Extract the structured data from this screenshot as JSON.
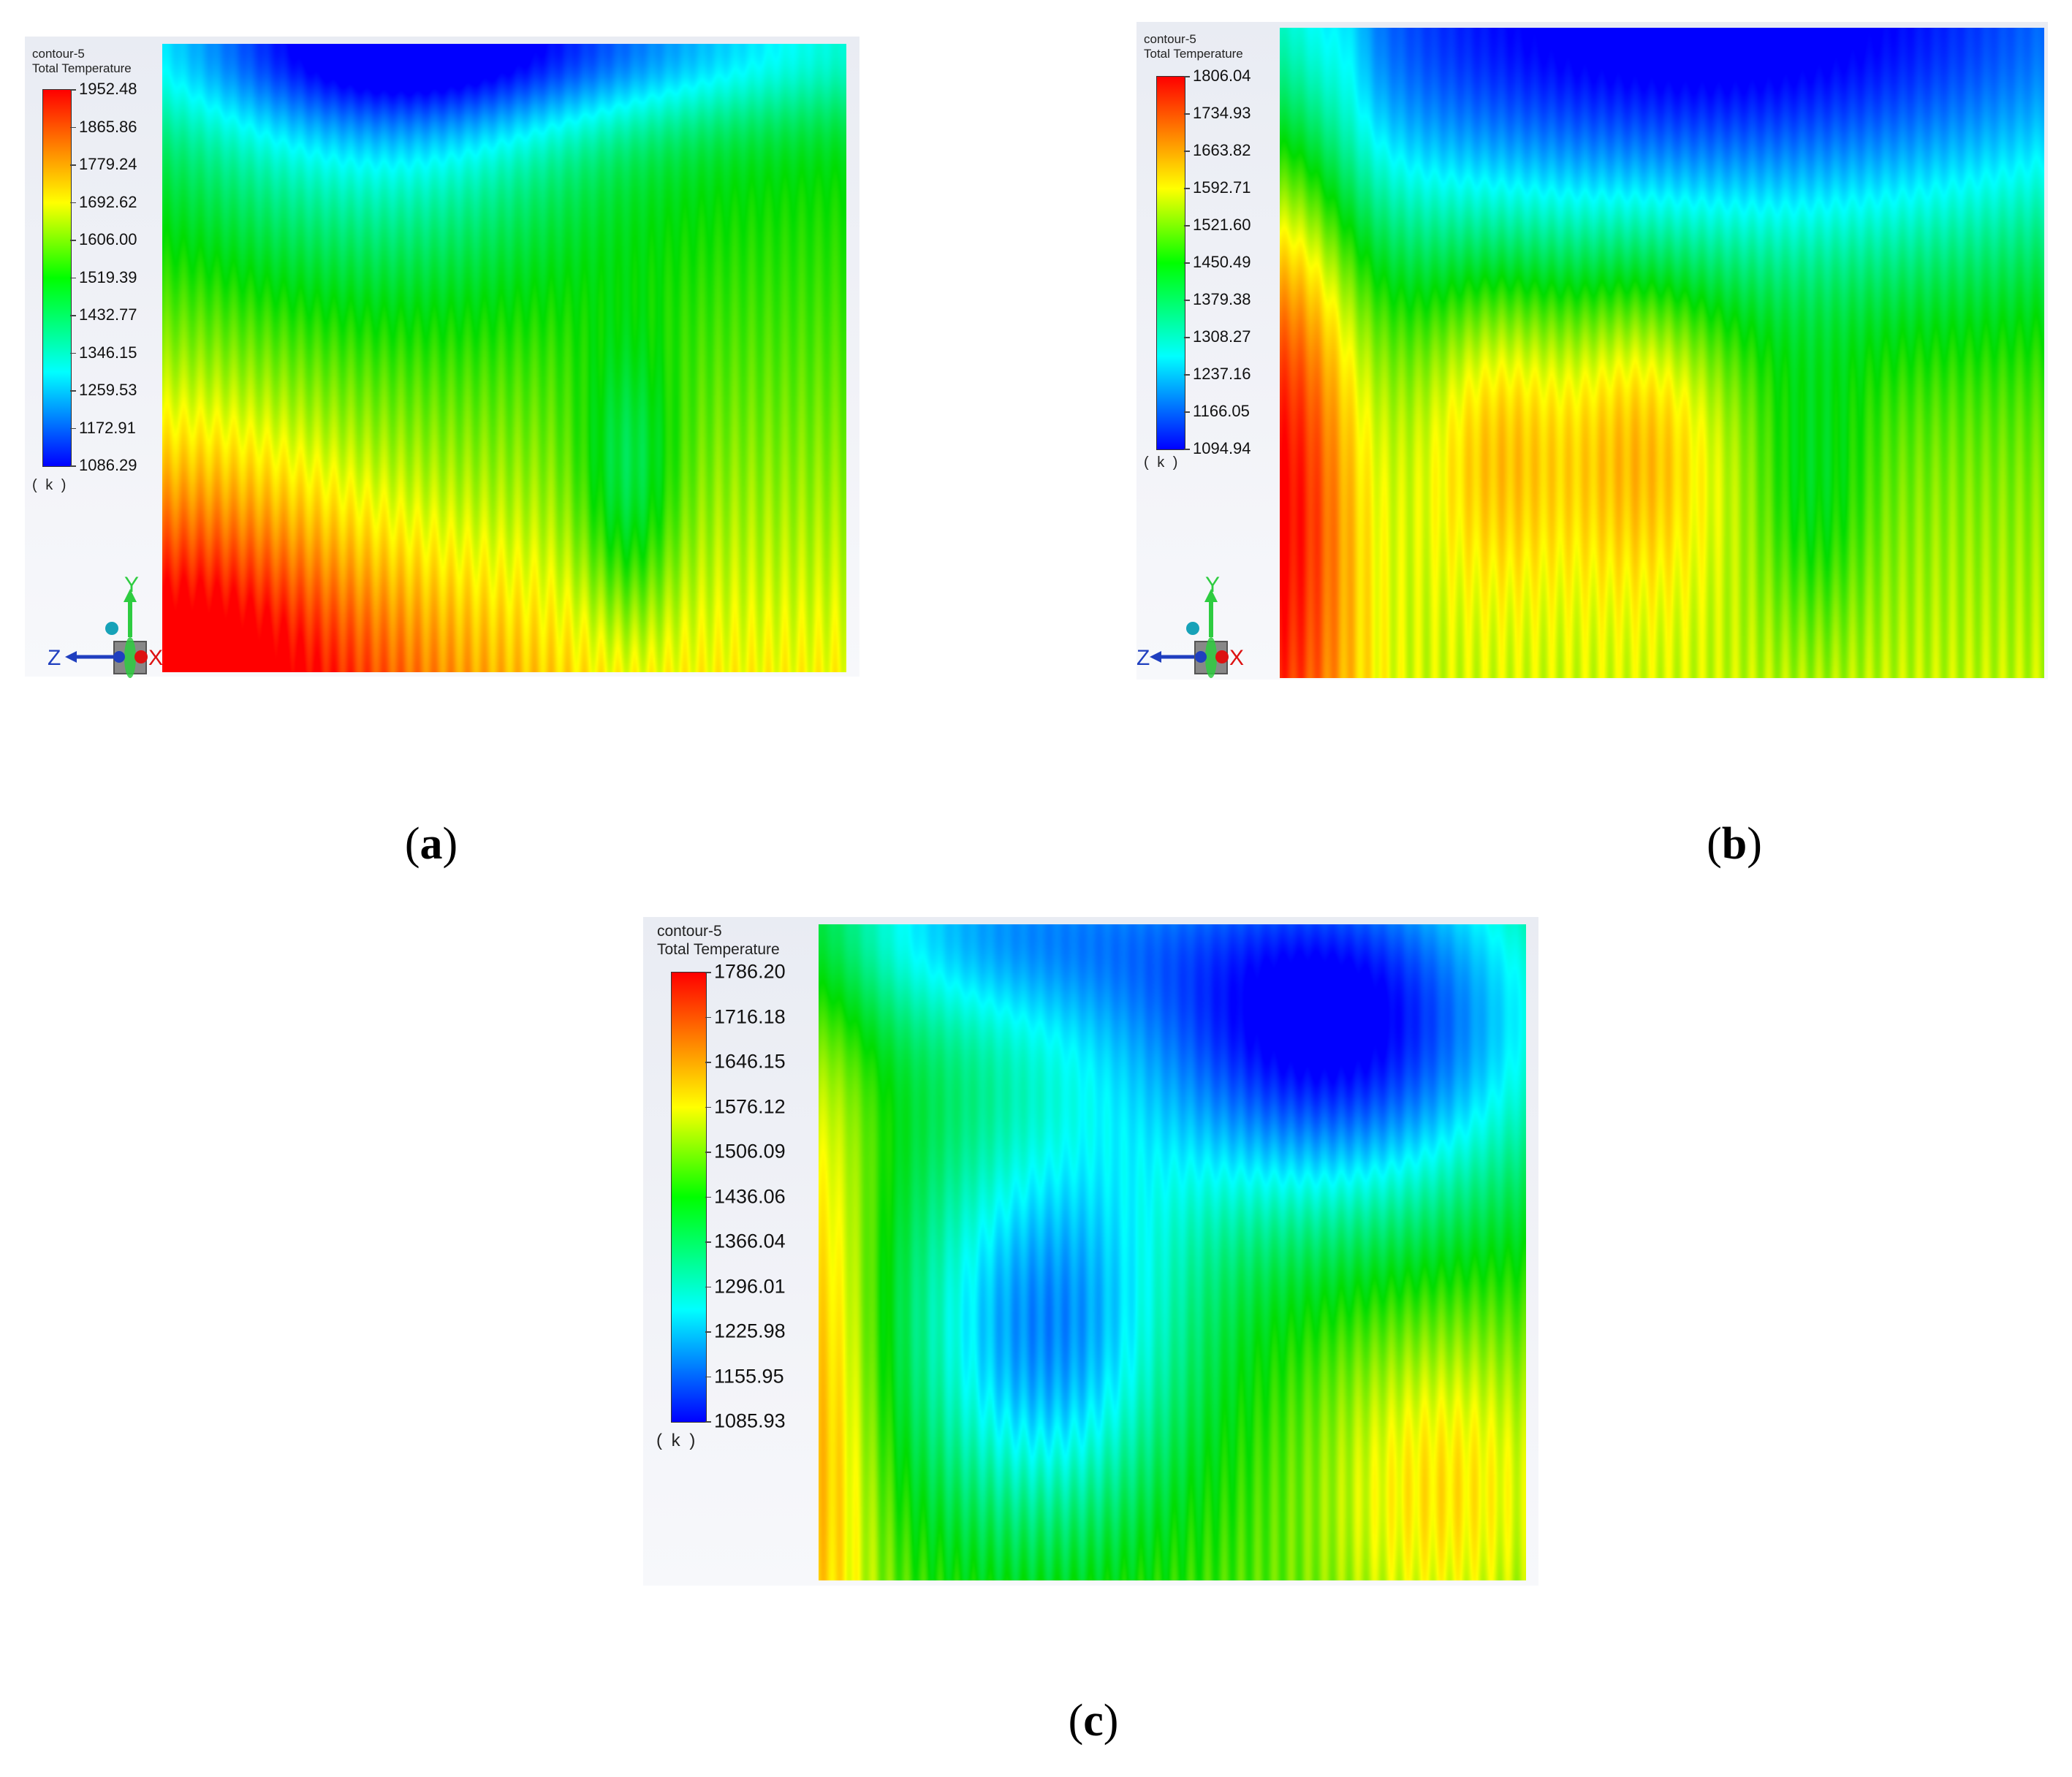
{
  "figures": [
    {
      "id": "a",
      "caption": "a",
      "legend": {
        "name": "contour-5",
        "quantity": "Total Temperature",
        "unit": "( k )",
        "max": 1952.48,
        "min": 1086.29,
        "ticks": [
          "1952.48",
          "1865.86",
          "1779.24",
          "1692.62",
          "1606.00",
          "1519.39",
          "1432.77",
          "1346.15",
          "1259.53",
          "1172.91",
          "1086.29"
        ]
      },
      "show_axes": true
    },
    {
      "id": "b",
      "caption": "b",
      "legend": {
        "name": "contour-5",
        "quantity": "Total Temperature",
        "unit": "( k )",
        "max": 1806.04,
        "min": 1094.94,
        "ticks": [
          "1806.04",
          "1734.93",
          "1663.82",
          "1592.71",
          "1521.60",
          "1450.49",
          "1379.38",
          "1308.27",
          "1237.16",
          "1166.05",
          "1094.94"
        ]
      },
      "show_axes": true
    },
    {
      "id": "c",
      "caption": "c",
      "legend": {
        "name": "contour-5",
        "quantity": "Total Temperature",
        "unit": "( k )",
        "max": 1786.2,
        "min": 1085.93,
        "ticks": [
          "1786.20",
          "1716.18",
          "1646.15",
          "1576.12",
          "1506.09",
          "1436.06",
          "1366.04",
          "1296.01",
          "1225.98",
          "1155.95",
          "1085.93"
        ]
      },
      "show_axes": false
    }
  ],
  "axis_labels": {
    "y": "Y",
    "z": "Z",
    "x": "X"
  },
  "colormap": [
    "#0000ff",
    "#00ffff",
    "#00ff00",
    "#ffff00",
    "#ff0000"
  ]
}
